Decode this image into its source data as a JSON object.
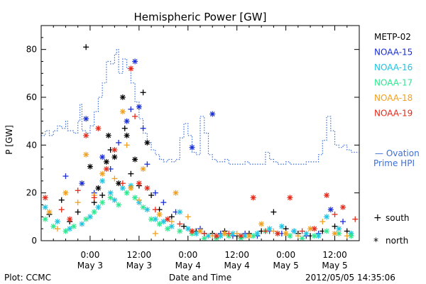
{
  "chart_data": {
    "type": "scatter",
    "title": "Hemispheric Power [GW]",
    "ylabel": "P [GW]",
    "xlabel": "Date and Time",
    "ylim": [
      0,
      90
    ],
    "yticks": [
      0,
      20,
      40,
      60,
      80
    ],
    "xlim_hours": [
      -12,
      66
    ],
    "xticks": [
      {
        "hour": 0,
        "time": "0:00",
        "date": "May 3"
      },
      {
        "hour": 12,
        "time": "12:00",
        "date": "May 3"
      },
      {
        "hour": 24,
        "time": "0:00",
        "date": "May 4"
      },
      {
        "hour": 36,
        "time": "12:00",
        "date": "May 4"
      },
      {
        "hour": 48,
        "time": "0:00",
        "date": "May 5"
      },
      {
        "hour": 60,
        "time": "12:00",
        "date": "May 5"
      }
    ],
    "legend": [
      {
        "name": "METP-02",
        "color": "#000000"
      },
      {
        "name": "NOAA-15",
        "color": "#1a2fd6"
      },
      {
        "name": "NOAA-16",
        "color": "#1fc4e0"
      },
      {
        "name": "NOAA-17",
        "color": "#2ee890"
      },
      {
        "name": "NOAA-18",
        "color": "#f0a020"
      },
      {
        "name": "NOAA-19",
        "color": "#e52a1a"
      }
    ],
    "ovation_label_1": "— Ovation",
    "ovation_label_2": "Prime HPI",
    "ovation_color": "#3a6fd8",
    "marker_legend": [
      {
        "symbol": "+",
        "label": "south"
      },
      {
        "symbol": "*",
        "label": "north"
      }
    ],
    "ovation": [
      [
        -12,
        44
      ],
      [
        -11,
        46
      ],
      [
        -10,
        44
      ],
      [
        -9,
        46
      ],
      [
        -8,
        48
      ],
      [
        -7,
        47
      ],
      [
        -6,
        50
      ],
      [
        -5.5,
        46
      ],
      [
        -4,
        45
      ],
      [
        -3,
        50
      ],
      [
        -2.5,
        57
      ],
      [
        -2,
        46
      ],
      [
        -1,
        45
      ],
      [
        0,
        48
      ],
      [
        1,
        54
      ],
      [
        2,
        60
      ],
      [
        3,
        66
      ],
      [
        4,
        75
      ],
      [
        5,
        74
      ],
      [
        6,
        78
      ],
      [
        6.5,
        80
      ],
      [
        7,
        70
      ],
      [
        8,
        76
      ],
      [
        9,
        72
      ],
      [
        10,
        66
      ],
      [
        11,
        58
      ],
      [
        12,
        51
      ],
      [
        13,
        45
      ],
      [
        14,
        41
      ],
      [
        15,
        38
      ],
      [
        16,
        36
      ],
      [
        17,
        34
      ],
      [
        18,
        33
      ],
      [
        19,
        34
      ],
      [
        20,
        33
      ],
      [
        21,
        34
      ],
      [
        22,
        43
      ],
      [
        23,
        49
      ],
      [
        24,
        44
      ],
      [
        25,
        37
      ],
      [
        26,
        36
      ],
      [
        27,
        52
      ],
      [
        28,
        45
      ],
      [
        29,
        36
      ],
      [
        30,
        34
      ],
      [
        31,
        33
      ],
      [
        32,
        33
      ],
      [
        33,
        34
      ],
      [
        34,
        32
      ],
      [
        35,
        32
      ],
      [
        36,
        32
      ],
      [
        37,
        32
      ],
      [
        38,
        33
      ],
      [
        39,
        32
      ],
      [
        40,
        32
      ],
      [
        41,
        32
      ],
      [
        42,
        32
      ],
      [
        43,
        37
      ],
      [
        44,
        34
      ],
      [
        45,
        33
      ],
      [
        46,
        32
      ],
      [
        47,
        32
      ],
      [
        48,
        33
      ],
      [
        49,
        32
      ],
      [
        50,
        32
      ],
      [
        51,
        32
      ],
      [
        52,
        32
      ],
      [
        53,
        33
      ],
      [
        54,
        33
      ],
      [
        55,
        33
      ],
      [
        56,
        36
      ],
      [
        57,
        42
      ],
      [
        58,
        52
      ],
      [
        59,
        46
      ],
      [
        60,
        40
      ],
      [
        61,
        39
      ],
      [
        62,
        40
      ],
      [
        63,
        38
      ],
      [
        64,
        37
      ],
      [
        65,
        37
      ]
    ],
    "series": [
      {
        "name": "METP-02",
        "points": [
          [
            -10,
            11,
            "s"
          ],
          [
            -7,
            17,
            "s"
          ],
          [
            -5,
            8,
            "s"
          ],
          [
            -3,
            12,
            "s"
          ],
          [
            -1,
            81,
            "s"
          ],
          [
            0,
            31,
            "n"
          ],
          [
            1,
            16,
            "s"
          ],
          [
            2,
            22,
            "n"
          ],
          [
            3,
            19,
            "s"
          ],
          [
            4,
            33,
            "n"
          ],
          [
            4.5,
            44,
            "n"
          ],
          [
            5,
            38,
            "s"
          ],
          [
            6,
            35,
            "n"
          ],
          [
            7,
            24,
            "n"
          ],
          [
            8,
            60,
            "n"
          ],
          [
            8.5,
            47,
            "s"
          ],
          [
            9,
            44,
            "n"
          ],
          [
            10,
            28,
            "s"
          ],
          [
            11,
            34,
            "n"
          ],
          [
            12,
            23,
            "s"
          ],
          [
            13,
            62,
            "s"
          ],
          [
            14,
            41,
            "n"
          ],
          [
            15,
            19,
            "s"
          ],
          [
            17,
            13,
            "s"
          ],
          [
            20,
            10,
            "s"
          ],
          [
            23,
            6,
            "s"
          ],
          [
            26,
            4,
            "s"
          ],
          [
            28,
            3,
            "s"
          ],
          [
            30,
            3,
            "s"
          ],
          [
            33,
            4,
            "s"
          ],
          [
            36,
            2,
            "s"
          ],
          [
            39,
            3,
            "s"
          ],
          [
            42,
            4,
            "s"
          ],
          [
            45,
            12,
            "s"
          ],
          [
            48,
            5,
            "s"
          ],
          [
            51,
            3,
            "s"
          ],
          [
            54,
            2,
            "s"
          ],
          [
            57,
            4,
            "s"
          ],
          [
            60,
            6,
            "s"
          ],
          [
            63,
            4,
            "s"
          ]
        ]
      },
      {
        "name": "NOAA-15",
        "points": [
          [
            -6,
            27,
            "s"
          ],
          [
            -2,
            24,
            "n"
          ],
          [
            -1,
            51,
            "n"
          ],
          [
            1,
            20,
            "s"
          ],
          [
            3,
            35,
            "n"
          ],
          [
            5,
            30,
            "s"
          ],
          [
            7,
            41,
            "s"
          ],
          [
            9,
            50,
            "n"
          ],
          [
            10,
            55,
            "s"
          ],
          [
            11,
            75,
            "n"
          ],
          [
            12,
            56,
            "n"
          ],
          [
            13,
            47,
            "s"
          ],
          [
            14,
            32,
            "s"
          ],
          [
            16,
            20,
            "s"
          ],
          [
            18,
            16,
            "s"
          ],
          [
            21,
            12,
            "s"
          ],
          [
            25,
            39,
            "n"
          ],
          [
            27,
            5,
            "s"
          ],
          [
            30,
            53,
            "n"
          ],
          [
            32,
            3,
            "s"
          ],
          [
            35,
            2,
            "s"
          ],
          [
            38,
            3,
            "s"
          ],
          [
            41,
            2,
            "s"
          ],
          [
            44,
            4,
            "s"
          ],
          [
            47,
            3,
            "s"
          ],
          [
            50,
            4,
            "s"
          ],
          [
            53,
            2,
            "s"
          ],
          [
            56,
            3,
            "s"
          ],
          [
            59,
            13,
            "n"
          ],
          [
            62,
            8,
            "s"
          ]
        ]
      },
      {
        "name": "NOAA-16",
        "points": [
          [
            -11,
            14,
            "n"
          ],
          [
            -8,
            8,
            "n"
          ],
          [
            -5,
            5,
            "n"
          ],
          [
            -2,
            7,
            "n"
          ],
          [
            0,
            10,
            "n"
          ],
          [
            2,
            14,
            "n"
          ],
          [
            3,
            25,
            "n"
          ],
          [
            5,
            20,
            "n"
          ],
          [
            6,
            17,
            "n"
          ],
          [
            8,
            22,
            "n"
          ],
          [
            10,
            23,
            "n"
          ],
          [
            12,
            16,
            "n"
          ],
          [
            14,
            13,
            "n"
          ],
          [
            16,
            9,
            "n"
          ],
          [
            18,
            8,
            "n"
          ],
          [
            20,
            6,
            "n"
          ],
          [
            22,
            12,
            "n"
          ],
          [
            24,
            5,
            "n"
          ],
          [
            26,
            3,
            "n"
          ],
          [
            29,
            2,
            "n"
          ],
          [
            32,
            2,
            "n"
          ],
          [
            35,
            3,
            "n"
          ],
          [
            38,
            2,
            "n"
          ],
          [
            41,
            3,
            "n"
          ],
          [
            44,
            5,
            "n"
          ],
          [
            47,
            6,
            "n"
          ],
          [
            50,
            4,
            "n"
          ],
          [
            53,
            3,
            "n"
          ],
          [
            56,
            2,
            "n"
          ],
          [
            58,
            10,
            "n"
          ],
          [
            61,
            5,
            "n"
          ],
          [
            64,
            3,
            "n"
          ]
        ]
      },
      {
        "name": "NOAA-17",
        "points": [
          [
            -11,
            9,
            "n"
          ],
          [
            -9,
            6,
            "n"
          ],
          [
            -6,
            4,
            "n"
          ],
          [
            -4,
            6,
            "n"
          ],
          [
            -1,
            9,
            "n"
          ],
          [
            1,
            12,
            "n"
          ],
          [
            3,
            16,
            "n"
          ],
          [
            5,
            18,
            "n"
          ],
          [
            7,
            15,
            "n"
          ],
          [
            9,
            20,
            "n"
          ],
          [
            11,
            18,
            "n"
          ],
          [
            13,
            14,
            "n"
          ],
          [
            15,
            9,
            "n"
          ],
          [
            17,
            7,
            "n"
          ],
          [
            19,
            5,
            "n"
          ],
          [
            22,
            4,
            "n"
          ],
          [
            25,
            3,
            "n"
          ],
          [
            28,
            1,
            "n"
          ],
          [
            31,
            1,
            "n"
          ],
          [
            34,
            2,
            "n"
          ],
          [
            37,
            1,
            "n"
          ],
          [
            40,
            2,
            "n"
          ],
          [
            43,
            4,
            "n"
          ],
          [
            46,
            3,
            "n"
          ],
          [
            49,
            2,
            "n"
          ],
          [
            52,
            1,
            "n"
          ],
          [
            55,
            2,
            "n"
          ],
          [
            58,
            4,
            "n"
          ],
          [
            61,
            3,
            "n"
          ],
          [
            64,
            2,
            "n"
          ]
        ]
      },
      {
        "name": "NOAA-18",
        "points": [
          [
            -10,
            12,
            "n"
          ],
          [
            -8,
            5,
            "s"
          ],
          [
            -6,
            20,
            "n"
          ],
          [
            -3,
            16,
            "s"
          ],
          [
            -1,
            36,
            "n"
          ],
          [
            1,
            19,
            "s"
          ],
          [
            3,
            28,
            "n"
          ],
          [
            6,
            26,
            "s"
          ],
          [
            8,
            54,
            "n"
          ],
          [
            9,
            40,
            "s"
          ],
          [
            10,
            22,
            "n"
          ],
          [
            12,
            17,
            "s"
          ],
          [
            13,
            30,
            "n"
          ],
          [
            16,
            3,
            "s"
          ],
          [
            17,
            11,
            "n"
          ],
          [
            20,
            8,
            "s"
          ],
          [
            21,
            20,
            "n"
          ],
          [
            24,
            10,
            "s"
          ],
          [
            27,
            4,
            "n"
          ],
          [
            30,
            2,
            "s"
          ],
          [
            33,
            3,
            "n"
          ],
          [
            36,
            3,
            "s"
          ],
          [
            39,
            2,
            "n"
          ],
          [
            42,
            7,
            "n"
          ],
          [
            45,
            4,
            "s"
          ],
          [
            48,
            3,
            "n"
          ],
          [
            51,
            2,
            "s"
          ],
          [
            54,
            5,
            "n"
          ],
          [
            57,
            8,
            "s"
          ],
          [
            60,
            3,
            "n"
          ],
          [
            63,
            2,
            "s"
          ]
        ]
      },
      {
        "name": "NOAA-19",
        "points": [
          [
            -11,
            18,
            "n"
          ],
          [
            -7,
            13,
            "s"
          ],
          [
            -5,
            9,
            "n"
          ],
          [
            -3,
            21,
            "s"
          ],
          [
            -1,
            44,
            "n"
          ],
          [
            1,
            18,
            "s"
          ],
          [
            2,
            47,
            "n"
          ],
          [
            4,
            30,
            "n"
          ],
          [
            6,
            38,
            "n"
          ],
          [
            8,
            24,
            "s"
          ],
          [
            10,
            72,
            "n"
          ],
          [
            11,
            52,
            "s"
          ],
          [
            12,
            24,
            "n"
          ],
          [
            14,
            22,
            "n"
          ],
          [
            16,
            13,
            "s"
          ],
          [
            19,
            9,
            "n"
          ],
          [
            22,
            7,
            "s"
          ],
          [
            25,
            4,
            "n"
          ],
          [
            28,
            3,
            "s"
          ],
          [
            31,
            2,
            "n"
          ],
          [
            34,
            3,
            "s"
          ],
          [
            37,
            2,
            "n"
          ],
          [
            40,
            18,
            "n"
          ],
          [
            43,
            4,
            "s"
          ],
          [
            46,
            3,
            "n"
          ],
          [
            49,
            18,
            "n"
          ],
          [
            52,
            4,
            "s"
          ],
          [
            55,
            5,
            "n"
          ],
          [
            58,
            19,
            "n"
          ],
          [
            60,
            11,
            "s"
          ],
          [
            62,
            14,
            "n"
          ],
          [
            65,
            9,
            "s"
          ]
        ]
      }
    ]
  },
  "footer": {
    "left": "Plot: CCMC",
    "right": "2012/05/05 14:35:06"
  }
}
